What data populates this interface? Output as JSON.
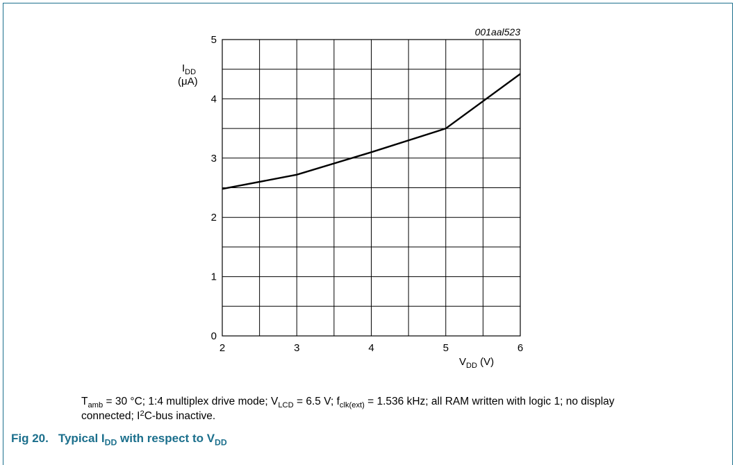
{
  "chart_data": {
    "type": "line",
    "id_label": "001aal523",
    "x_axis": {
      "main": "V",
      "sub": "DD",
      "unit": " (V)",
      "range": [
        2,
        6
      ],
      "ticks": [
        2,
        3,
        4,
        5,
        6
      ]
    },
    "y_axis": {
      "main": "I",
      "sub": "DD",
      "unit": "(μA)",
      "range": [
        0,
        5
      ],
      "ticks": [
        0,
        1,
        2,
        3,
        4,
        5
      ]
    },
    "grid": {
      "x_step": 0.5,
      "y_step": 0.5
    },
    "series": [
      {
        "x": [
          2,
          3,
          4,
          5,
          6
        ],
        "y": [
          2.48,
          2.72,
          3.1,
          3.5,
          4.42
        ]
      }
    ]
  },
  "note": {
    "t_main": "T",
    "t_sub": "amb",
    "t_text": " = 30 °C; 1:4 multiplex drive mode; ",
    "v_main": "V",
    "v_sub": "LCD",
    "v_text": " = 6.5 V; ",
    "f_main": "f",
    "f_sub": "clk(ext)",
    "f_text": " = 1.536 kHz; all RAM written with logic 1; no display connected; ",
    "i_main": "I",
    "i_sup": "2",
    "i_text": "C-bus inactive."
  },
  "caption": {
    "number": "Fig 20.",
    "p1": "Typical I",
    "sub1": "DD",
    "p2": " with respect to V",
    "sub2": "DD"
  }
}
